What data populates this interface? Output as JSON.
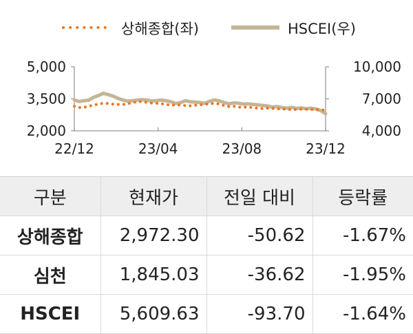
{
  "chart_data": {
    "type": "line",
    "legend": [
      {
        "name": "상해종합(좌)",
        "color": "#e87722",
        "style": "dotted"
      },
      {
        "name": "HSCEI(우)",
        "color": "#c5b597",
        "style": "solid"
      }
    ],
    "x_ticks": [
      "22/12",
      "23/04",
      "23/08",
      "23/12"
    ],
    "y_left": {
      "ticks": [
        "2,000",
        "3,500",
        "5,000"
      ],
      "values": [
        2000,
        3500,
        5000
      ],
      "ylim": [
        2000,
        5000
      ]
    },
    "y_right": {
      "ticks": [
        "4,000",
        "7,000",
        "10,000"
      ],
      "values": [
        4000,
        7000,
        10000
      ],
      "ylim": [
        4000,
        10000
      ]
    },
    "series": [
      {
        "name": "상해종합(좌)",
        "axis": "left",
        "x": [
          0,
          1,
          2,
          3,
          4,
          5,
          6,
          7,
          8,
          9,
          10,
          11,
          12,
          13,
          14,
          15,
          16,
          17,
          18,
          19,
          20,
          21,
          22,
          23,
          24,
          25,
          26,
          27,
          28,
          29,
          30,
          31,
          32,
          33,
          34,
          35,
          36,
          37,
          38,
          39,
          40,
          41,
          42,
          43,
          44,
          45,
          46,
          47,
          48,
          49,
          50,
          51,
          52
        ],
        "values": [
          3150,
          3090,
          3100,
          3160,
          3200,
          3260,
          3290,
          3280,
          3250,
          3240,
          3230,
          3270,
          3320,
          3360,
          3370,
          3330,
          3300,
          3290,
          3270,
          3240,
          3200,
          3220,
          3210,
          3180,
          3170,
          3200,
          3220,
          3240,
          3270,
          3280,
          3260,
          3180,
          3140,
          3150,
          3110,
          3100,
          3120,
          3080,
          3060,
          3040,
          3060,
          3050,
          3030,
          3020,
          3010,
          2990,
          3000,
          3020,
          3010,
          3000,
          3010,
          2980,
          2972
        ]
      },
      {
        "name": "HSCEI(우)",
        "axis": "right",
        "x": [
          0,
          1,
          2,
          3,
          4,
          5,
          6,
          7,
          8,
          9,
          10,
          11,
          12,
          13,
          14,
          15,
          16,
          17,
          18,
          19,
          20,
          21,
          22,
          23,
          24,
          25,
          26,
          27,
          28,
          29,
          30,
          31,
          32,
          33,
          34,
          35,
          36,
          37,
          38,
          39,
          40,
          41,
          42,
          43,
          44,
          45,
          46,
          47,
          48,
          49,
          50,
          51,
          52
        ],
        "values": [
          6900,
          6750,
          6820,
          6880,
          7150,
          7300,
          7520,
          7400,
          7250,
          7050,
          6900,
          6780,
          6820,
          6880,
          6920,
          6880,
          6800,
          6830,
          6880,
          6820,
          6720,
          6560,
          6650,
          6820,
          6720,
          6700,
          6650,
          6580,
          6770,
          6900,
          6800,
          6650,
          6530,
          6620,
          6580,
          6500,
          6530,
          6480,
          6430,
          6380,
          6330,
          6230,
          6280,
          6180,
          6120,
          6200,
          6100,
          6150,
          6070,
          6120,
          6050,
          5900,
          5610
        ]
      }
    ]
  },
  "table": {
    "headers": [
      "구분",
      "현재가",
      "전일 대비",
      "등락률"
    ],
    "rows": [
      [
        "상해종합",
        "2,972.30",
        "-50.62",
        "-1.67%"
      ],
      [
        "심천",
        "1,845.03",
        "-36.62",
        "-1.95%"
      ],
      [
        "HSCEI",
        "5,609.63",
        "-93.70",
        "-1.64%"
      ]
    ]
  }
}
